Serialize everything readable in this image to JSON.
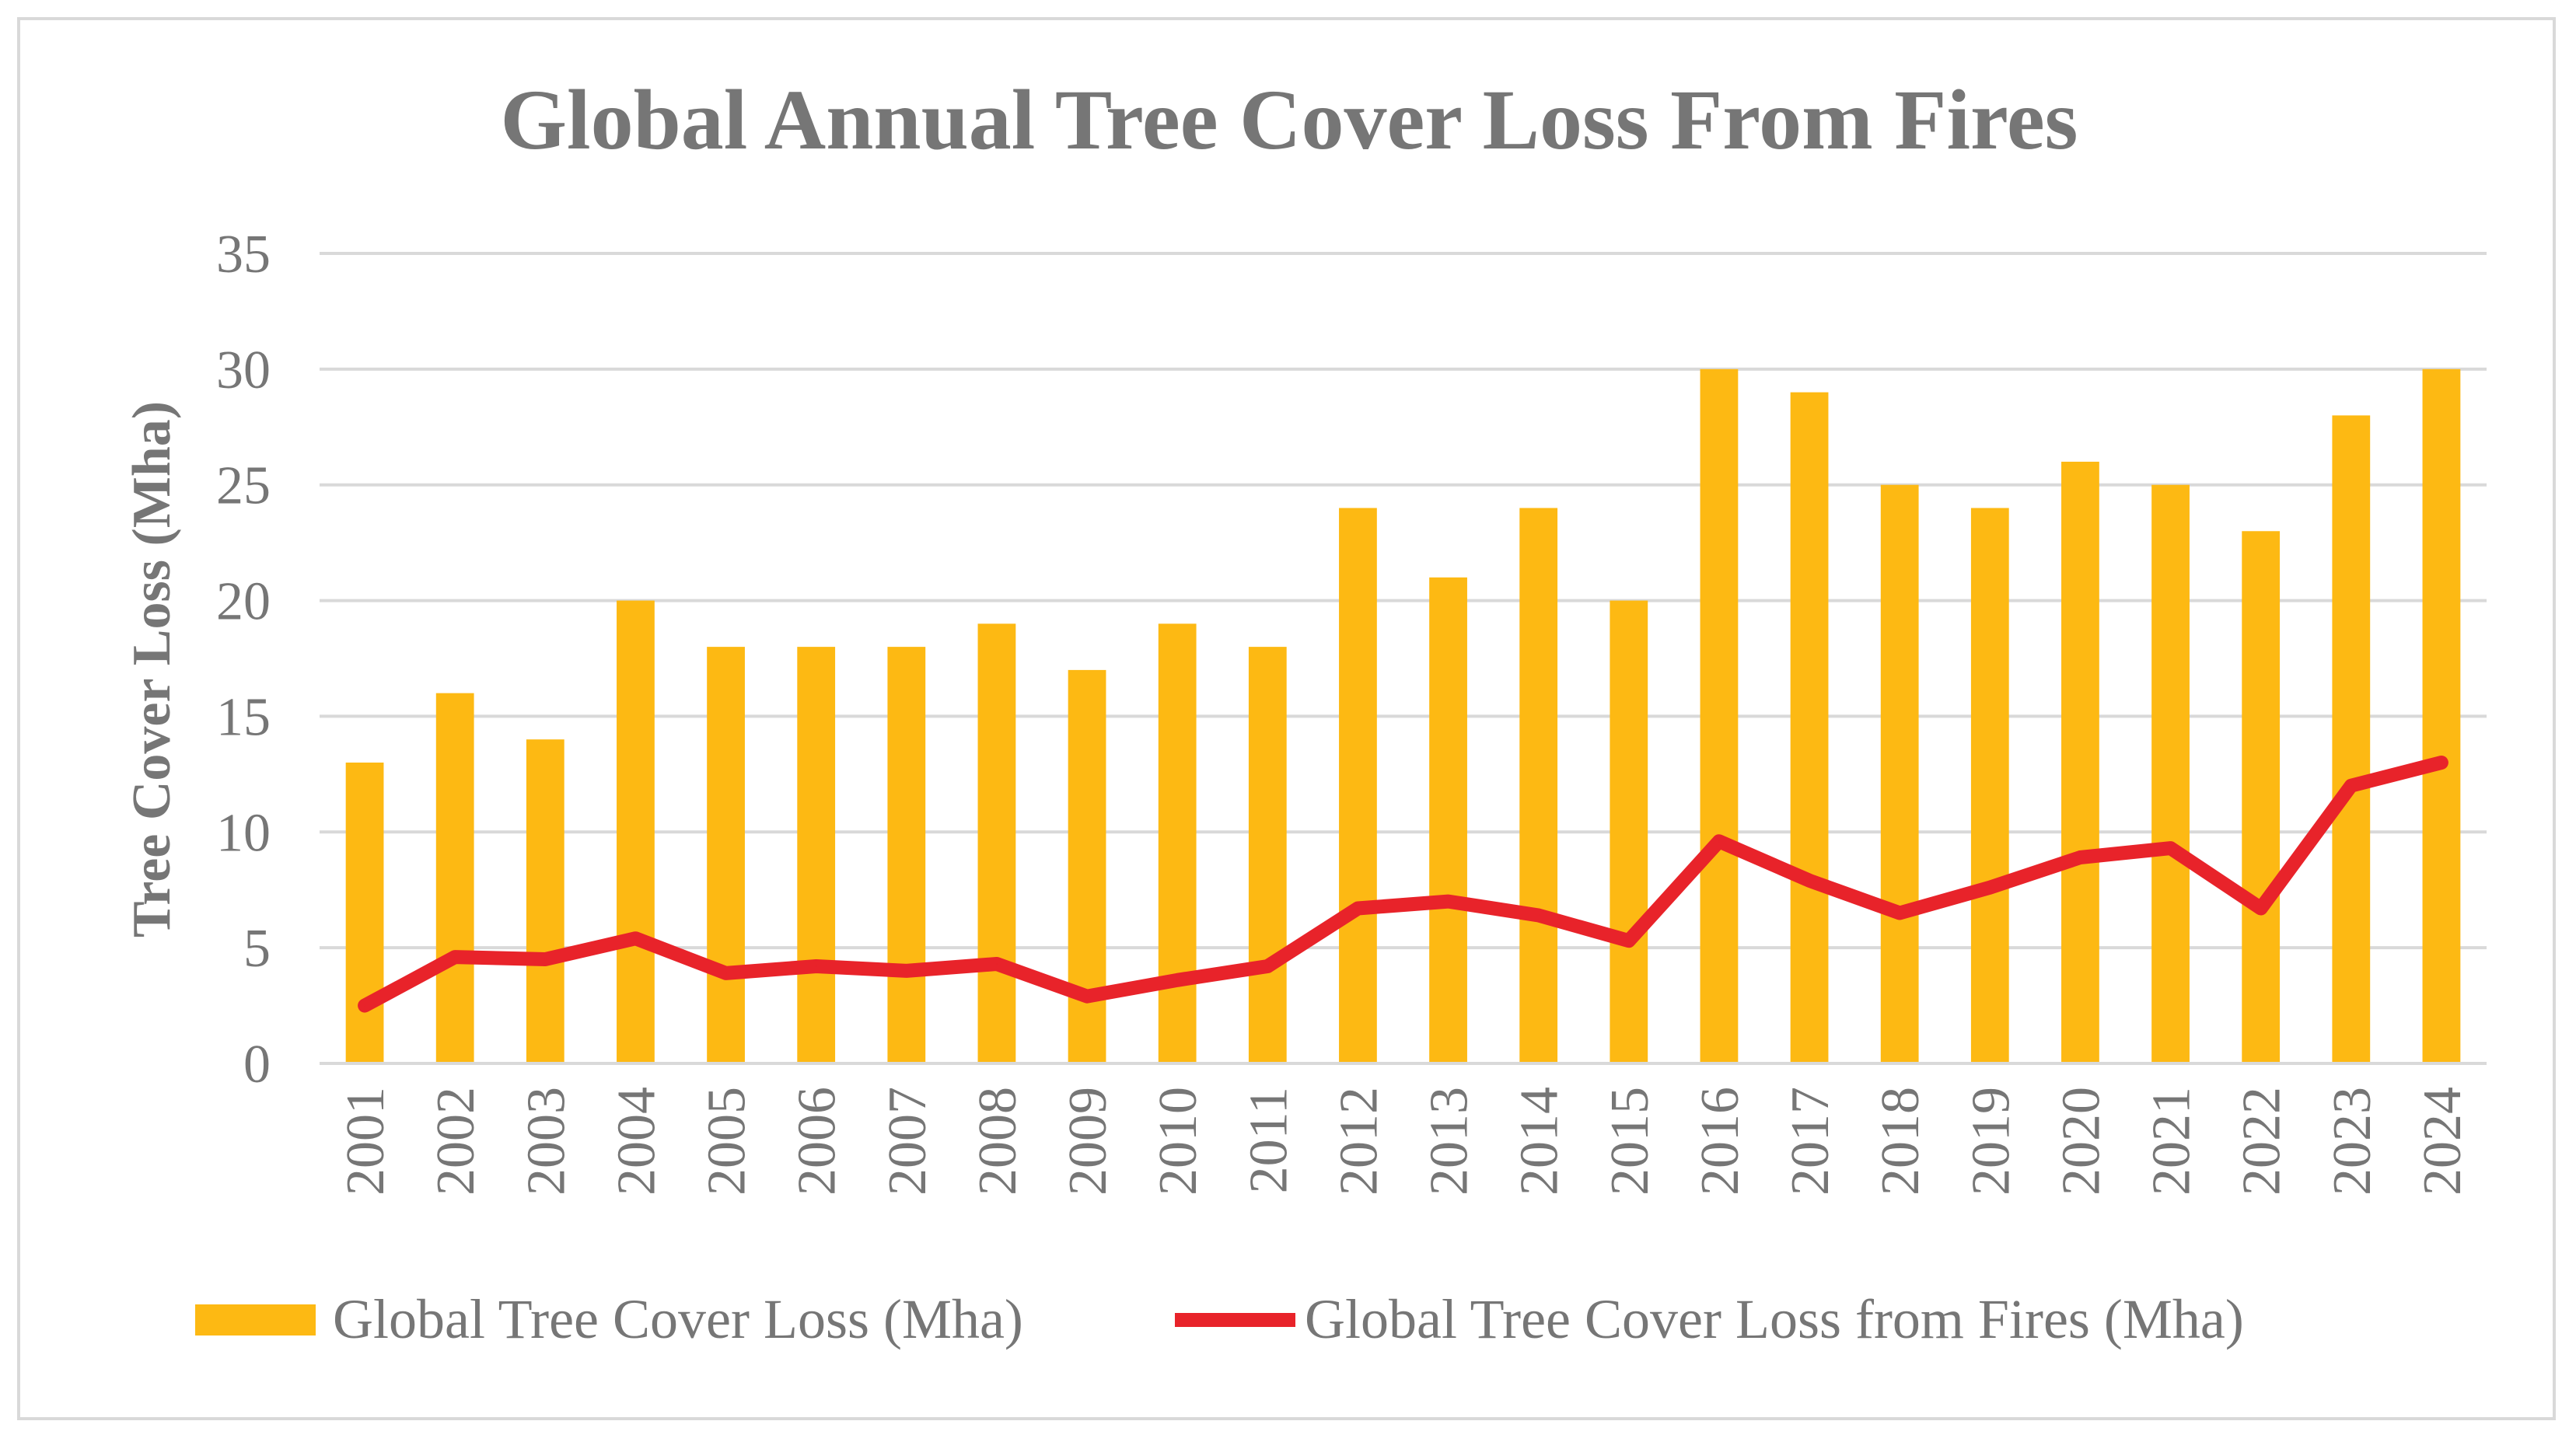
{
  "chart_data": {
    "type": "bar",
    "title": "Global Annual Tree Cover Loss From Fires",
    "ylabel": "Tree Cover Loss (Mha)",
    "xlabel": "",
    "ylim": [
      0,
      35
    ],
    "yticks": [
      0,
      5,
      10,
      15,
      20,
      25,
      30,
      35
    ],
    "grid": true,
    "legend_position": "bottom",
    "categories": [
      "2001",
      "2002",
      "2003",
      "2004",
      "2005",
      "2006",
      "2007",
      "2008",
      "2009",
      "2010",
      "2011",
      "2012",
      "2013",
      "2014",
      "2015",
      "2016",
      "2017",
      "2018",
      "2019",
      "2020",
      "2021",
      "2022",
      "2023",
      "2024"
    ],
    "series": [
      {
        "name": "Global Tree Cover Loss (Mha)",
        "kind": "bar",
        "color": "#FDB913",
        "values": [
          13,
          16,
          14,
          20,
          18,
          18,
          18,
          19,
          17,
          19,
          18,
          24,
          21,
          24,
          20,
          30,
          29,
          25,
          24,
          26,
          25,
          23,
          28,
          30
        ]
      },
      {
        "name": "Global Tree Cover Loss from Fires (Mha)",
        "kind": "line",
        "color": "#E8232A",
        "values": [
          2.5,
          4.6,
          4.5,
          5.4,
          3.9,
          4.2,
          4.0,
          4.3,
          2.9,
          3.6,
          4.2,
          6.7,
          7.0,
          6.4,
          5.3,
          9.6,
          7.9,
          6.5,
          7.6,
          8.9,
          9.3,
          6.7,
          12.0,
          13.0
        ]
      }
    ]
  }
}
